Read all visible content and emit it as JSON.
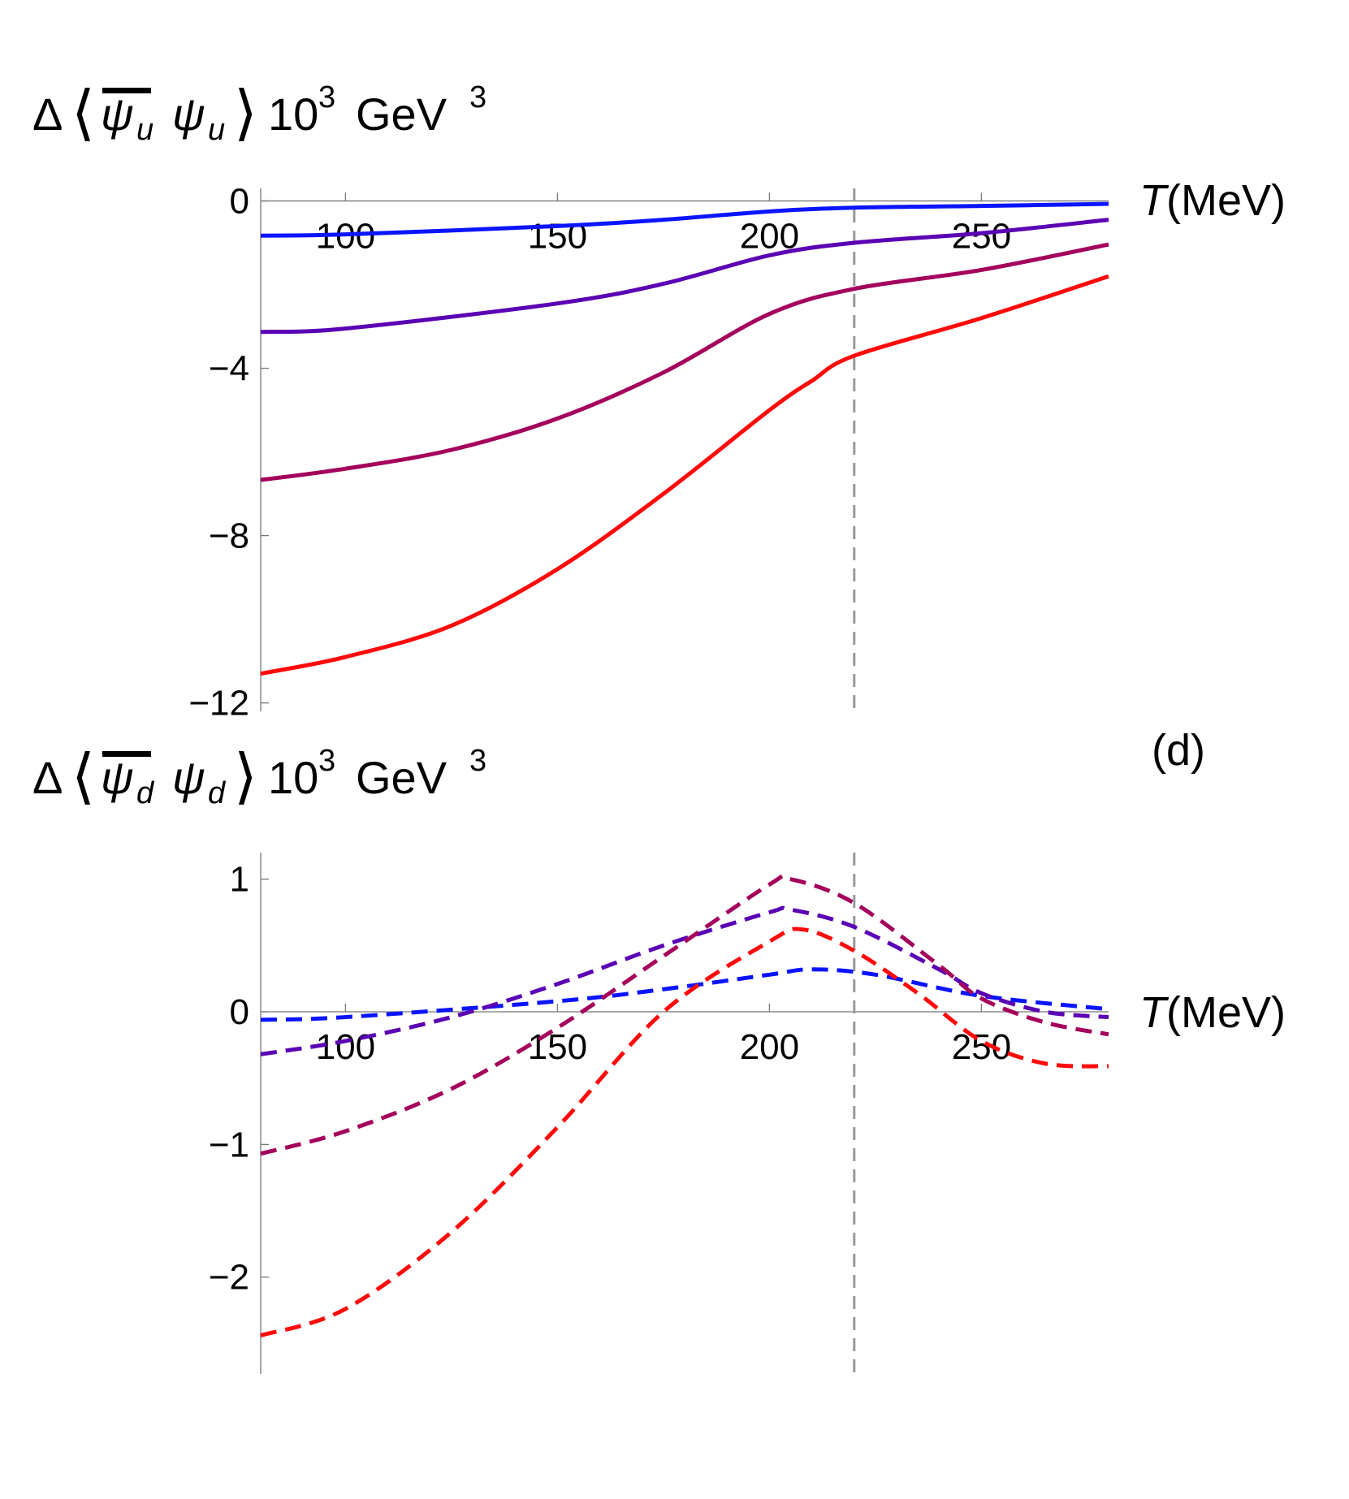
{
  "chart_data": [
    {
      "type": "line",
      "ylabel": {
        "delta": "Δ",
        "open": "⟨",
        "psi": "ψ",
        "sub": "u",
        "close": "⟩",
        "factor": "10",
        "factor_exp": "3",
        "unit": "GeV",
        "unit_exp": "3"
      },
      "xlabel": {
        "var": "T",
        "unit": "(MeV)"
      },
      "xlim": [
        80,
        280
      ],
      "ylim": [
        -12.2,
        0.3
      ],
      "xticks": [
        100,
        150,
        200,
        250
      ],
      "yticks": [
        0,
        -4,
        -8,
        -12
      ],
      "ytick_labels": [
        "0",
        "−4",
        "−8",
        "−12"
      ],
      "vline": 220,
      "line_style": "solid",
      "series": [
        {
          "color": "#0a14ff",
          "x": [
            80,
            100,
            150,
            175,
            200,
            220,
            250,
            280
          ],
          "y": [
            -0.83,
            -0.8,
            -0.6,
            -0.45,
            -0.25,
            -0.16,
            -0.12,
            -0.07
          ]
        },
        {
          "color": "#5a00b4",
          "x": [
            80,
            100,
            150,
            175,
            200,
            220,
            250,
            280
          ],
          "y": [
            -3.13,
            -3.05,
            -2.45,
            -1.98,
            -1.3,
            -1.0,
            -0.77,
            -0.45
          ]
        },
        {
          "color": "#a4005c",
          "x": [
            80,
            100,
            125,
            150,
            175,
            200,
            220,
            250,
            280
          ],
          "y": [
            -6.67,
            -6.4,
            -5.95,
            -5.2,
            -4.1,
            -2.7,
            -2.1,
            -1.65,
            -1.04
          ]
        },
        {
          "color": "#ff0a0a",
          "x": [
            80,
            100,
            125,
            150,
            175,
            200,
            210,
            220,
            250,
            280
          ],
          "y": [
            -11.3,
            -10.9,
            -10.15,
            -8.8,
            -7.0,
            -5.0,
            -4.3,
            -3.7,
            -2.8,
            -1.8
          ]
        }
      ]
    },
    {
      "type": "line",
      "ylabel": {
        "delta": "Δ",
        "open": "⟨",
        "psi": "ψ",
        "sub": "d",
        "close": "⟩",
        "factor": "10",
        "factor_exp": "3",
        "unit": "GeV",
        "unit_exp": "3"
      },
      "xlabel": {
        "var": "T",
        "unit": "(MeV)"
      },
      "panel_label": "(d)",
      "xlim": [
        80,
        280
      ],
      "ylim": [
        -2.73,
        1.2
      ],
      "xticks": [
        100,
        150,
        200,
        250
      ],
      "yticks": [
        1,
        0,
        -1,
        -2
      ],
      "ytick_labels": [
        "1",
        "0",
        "−1",
        "−2"
      ],
      "vline": 220,
      "line_style": "dashed",
      "series": [
        {
          "color": "#0a14ff",
          "x": [
            80,
            100,
            150,
            175,
            200,
            210,
            225,
            250,
            280
          ],
          "y": [
            -0.06,
            -0.04,
            0.08,
            0.17,
            0.28,
            0.32,
            0.28,
            0.12,
            0.02
          ]
        },
        {
          "color": "#5a00b4",
          "x": [
            80,
            100,
            125,
            150,
            175,
            200,
            205,
            220,
            240,
            250,
            265,
            280
          ],
          "y": [
            -0.32,
            -0.22,
            -0.04,
            0.21,
            0.5,
            0.75,
            0.77,
            0.64,
            0.32,
            0.14,
            0.0,
            -0.04
          ]
        },
        {
          "color": "#a4005c",
          "x": [
            80,
            100,
            125,
            150,
            175,
            200,
            205,
            220,
            240,
            250,
            265,
            280
          ],
          "y": [
            -1.07,
            -0.9,
            -0.58,
            -0.12,
            0.42,
            0.96,
            1.0,
            0.82,
            0.35,
            0.1,
            -0.08,
            -0.17
          ]
        },
        {
          "color": "#ff0a0a",
          "x": [
            80,
            100,
            125,
            150,
            175,
            200,
            208,
            220,
            235,
            250,
            265,
            280
          ],
          "y": [
            -2.44,
            -2.24,
            -1.66,
            -0.87,
            0.0,
            0.53,
            0.62,
            0.46,
            0.14,
            -0.22,
            -0.39,
            -0.41
          ]
        }
      ]
    }
  ]
}
